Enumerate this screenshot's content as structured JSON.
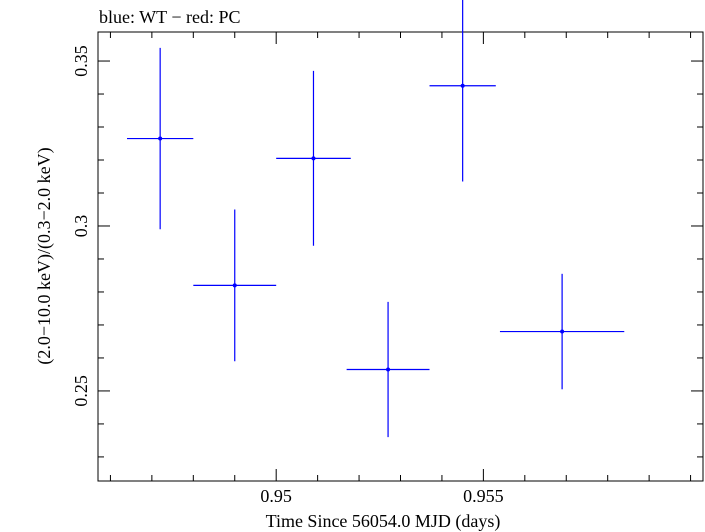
{
  "chart_data": {
    "type": "scatter",
    "title": "blue: WT − red: PC",
    "xlabel": "Time Since 56054.0 MJD (days)",
    "ylabel": "(2.0−10.0 keV)/(0.3−2.0 keV)",
    "xlim": [
      0.9457,
      0.9603
    ],
    "ylim": [
      0.2227,
      0.3588
    ],
    "x_ticks": [
      0.95,
      0.955
    ],
    "x_tick_labels": [
      "0.95",
      "0.955"
    ],
    "y_ticks": [
      0.25,
      0.3,
      0.35
    ],
    "y_tick_labels": [
      "0.25",
      "0.3",
      "0.35"
    ],
    "grid": false,
    "series": [
      {
        "name": "WT",
        "color": "#0000ff",
        "points": [
          {
            "x": 0.9472,
            "xerr": 0.0008,
            "y": 0.3265,
            "yerr": 0.0275
          },
          {
            "x": 0.949,
            "xerr": 0.001,
            "y": 0.282,
            "yerr": 0.023
          },
          {
            "x": 0.9509,
            "xerr": 0.0009,
            "y": 0.3205,
            "yerr": 0.0265
          },
          {
            "x": 0.9527,
            "xerr": 0.001,
            "y": 0.2565,
            "yerr": 0.0205
          },
          {
            "x": 0.9545,
            "xerr": 0.0008,
            "y": 0.3425,
            "yerr": 0.029
          },
          {
            "x": 0.9569,
            "xerr": 0.0015,
            "y": 0.268,
            "yerr": 0.0175
          }
        ]
      }
    ]
  }
}
